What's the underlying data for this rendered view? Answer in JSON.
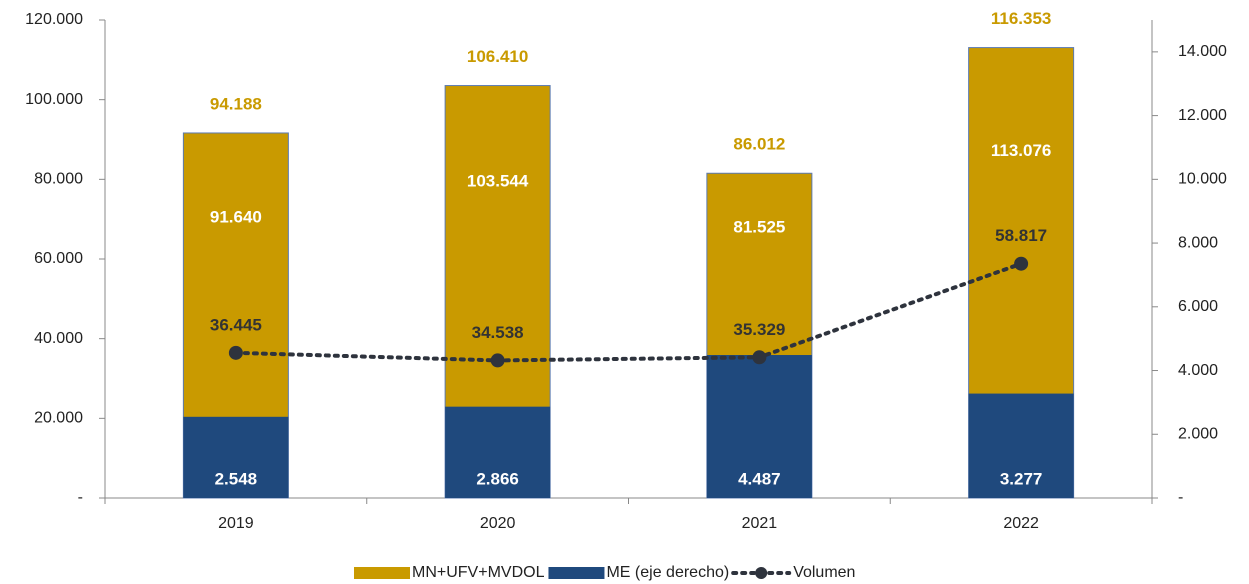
{
  "chart_data": {
    "type": "bar",
    "categories": [
      "2019",
      "2020",
      "2021",
      "2022"
    ],
    "series": [
      {
        "name": "MN+UFV+MVDOL",
        "color": "#c99a00",
        "values": [
          91640,
          103544,
          81525,
          113076
        ],
        "value_labels": [
          "91.640",
          "103.544",
          "81.525",
          "113.076"
        ]
      },
      {
        "name": "ME (eje derecho)",
        "color": "#1f497d",
        "axis": "y2",
        "values": [
          2548,
          2866,
          4487,
          3277
        ],
        "value_labels": [
          "2.548",
          "2.866",
          "4.487",
          "3.277"
        ]
      },
      {
        "name": "Volumen",
        "color": "#2e333d",
        "type": "line",
        "values": [
          36445,
          34538,
          35329,
          58817
        ],
        "value_labels": [
          "36.445",
          "34.538",
          "35.329",
          "58.817"
        ]
      }
    ],
    "totals": {
      "values": [
        94188,
        106410,
        86012,
        116353
      ],
      "value_labels": [
        "94.188",
        "106.410",
        "86.012",
        "116.353"
      ],
      "color": "#c99a00"
    },
    "ylim": [
      0,
      120000
    ],
    "yticks": [
      {
        "value": 0,
        "label": "-"
      },
      {
        "value": 20000,
        "label": "20.000"
      },
      {
        "value": 40000,
        "label": "40.000"
      },
      {
        "value": 60000,
        "label": "60.000"
      },
      {
        "value": 80000,
        "label": "80.000"
      },
      {
        "value": 100000,
        "label": "100.000"
      },
      {
        "value": 120000,
        "label": "120.000"
      }
    ],
    "y2lim": [
      0,
      15000
    ],
    "y2ticks": [
      {
        "value": 0,
        "label": "-"
      },
      {
        "value": 2000,
        "label": "2.000"
      },
      {
        "value": 4000,
        "label": "4.000"
      },
      {
        "value": 6000,
        "label": "6.000"
      },
      {
        "value": 8000,
        "label": "8.000"
      },
      {
        "value": 10000,
        "label": "10.000"
      },
      {
        "value": 12000,
        "label": "12.000"
      },
      {
        "value": 14000,
        "label": "14.000"
      }
    ],
    "legend": "bottom"
  }
}
